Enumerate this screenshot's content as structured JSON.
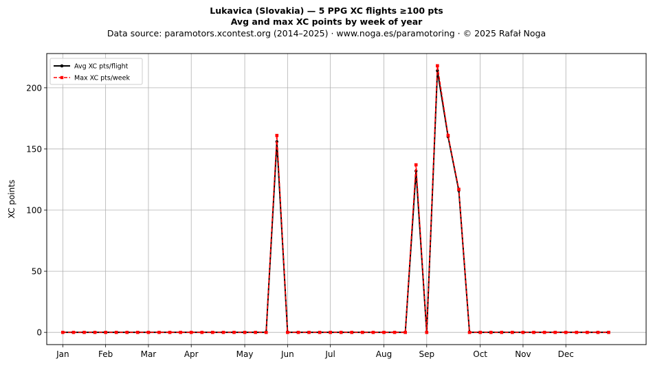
{
  "title": "Lukavica (Slovakia)  —  5 PPG XC flights ≥100 pts",
  "subtitle": "Avg and max XC points by week of year",
  "source": "Data source: paramotors.xcontest.org (2014–2025)  ·  www.noga.es/paramotoring  ·  © 2025 Rafał Noga",
  "chart_data": {
    "type": "line",
    "title": "Lukavica (Slovakia)  —  5 PPG XC flights ≥100 pts",
    "subtitle": "Avg and max XC points by week of year",
    "xlabel": "",
    "ylabel": "XC points",
    "ylim": [
      -10,
      228
    ],
    "xlim": [
      -1.5,
      54.5
    ],
    "grid": true,
    "legend_position": "top-left",
    "x_ticks": [
      {
        "x": 0,
        "label": "Jan"
      },
      {
        "x": 4,
        "label": "Feb"
      },
      {
        "x": 8,
        "label": "Mar"
      },
      {
        "x": 12,
        "label": "Apr"
      },
      {
        "x": 17,
        "label": "May"
      },
      {
        "x": 21,
        "label": "Jun"
      },
      {
        "x": 25,
        "label": "Jul"
      },
      {
        "x": 30,
        "label": "Aug"
      },
      {
        "x": 34,
        "label": "Sep"
      },
      {
        "x": 39,
        "label": "Oct"
      },
      {
        "x": 43,
        "label": "Nov"
      },
      {
        "x": 47,
        "label": "Dec"
      }
    ],
    "y_ticks": [
      0,
      50,
      100,
      150,
      200
    ],
    "x": [
      0,
      1,
      2,
      3,
      4,
      5,
      6,
      7,
      8,
      9,
      10,
      11,
      12,
      13,
      14,
      15,
      16,
      17,
      18,
      19,
      20,
      21,
      22,
      23,
      24,
      25,
      26,
      27,
      28,
      29,
      30,
      31,
      32,
      33,
      34,
      35,
      36,
      37,
      38,
      39,
      40,
      41,
      42,
      43,
      44,
      45,
      46,
      47,
      48,
      49,
      50,
      51
    ],
    "series": [
      {
        "name": "Avg XC pts/flight",
        "color": "#000000",
        "style": "solid",
        "marker": "circle",
        "values": [
          0,
          0,
          0,
          0,
          0,
          0,
          0,
          0,
          0,
          0,
          0,
          0,
          0,
          0,
          0,
          0,
          0,
          0,
          0,
          0,
          156,
          0,
          0,
          0,
          0,
          0,
          0,
          0,
          0,
          0,
          0,
          0,
          0,
          132,
          0,
          214,
          160,
          116,
          0,
          0,
          0,
          0,
          0,
          0,
          0,
          0,
          0,
          0,
          0,
          0,
          0,
          0
        ]
      },
      {
        "name": "Max XC pts/week",
        "color": "#ff0000",
        "style": "dashed",
        "marker": "square",
        "values": [
          0,
          0,
          0,
          0,
          0,
          0,
          0,
          0,
          0,
          0,
          0,
          0,
          0,
          0,
          0,
          0,
          0,
          0,
          0,
          0,
          161,
          0,
          0,
          0,
          0,
          0,
          0,
          0,
          0,
          0,
          0,
          0,
          0,
          137,
          0,
          218,
          161,
          117,
          0,
          0,
          0,
          0,
          0,
          0,
          0,
          0,
          0,
          0,
          0,
          0,
          0,
          0
        ]
      }
    ]
  }
}
